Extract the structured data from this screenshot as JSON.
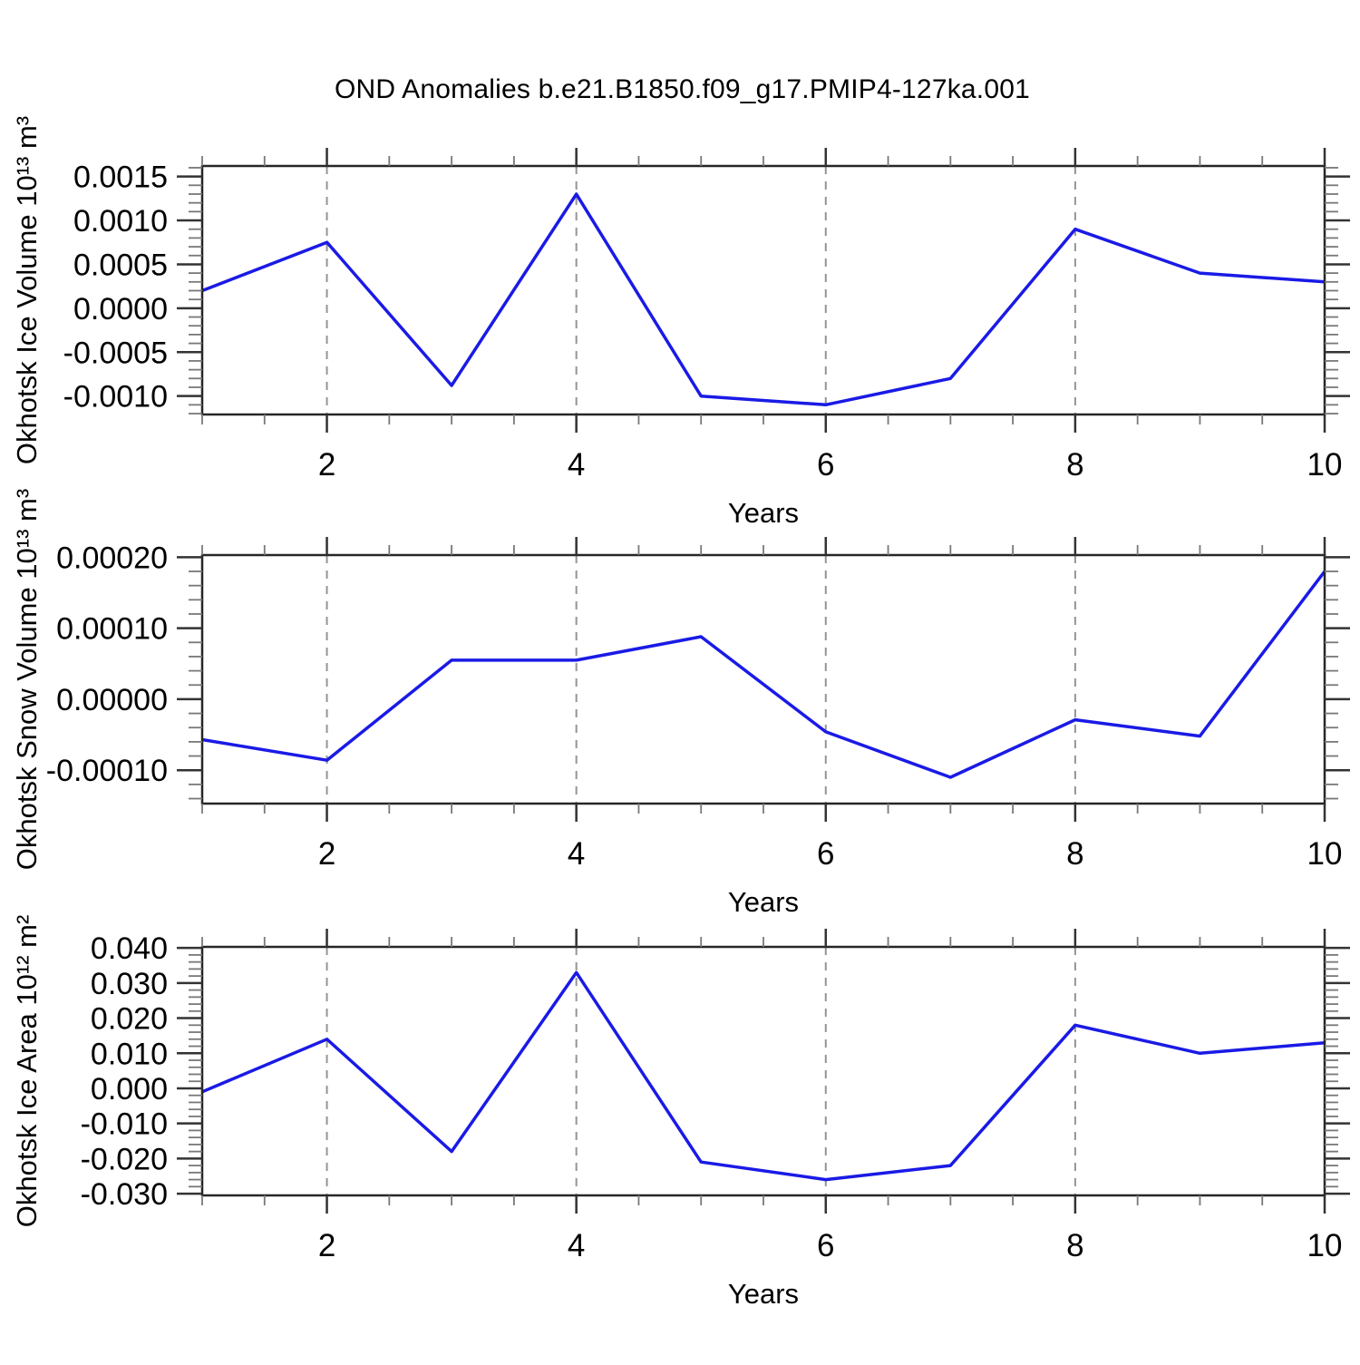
{
  "title": "OND Anomalies b.e21.B1850.f09_g17.PMIP4-127ka.001",
  "colors": {
    "line": "#1a1ae6",
    "axis": "#262626",
    "grid": "#949494",
    "tick_major": "#333333",
    "tick_minor": "#787878",
    "text": "#000000"
  },
  "chart_data": [
    {
      "id": "okhotsk-ice-volume",
      "type": "line",
      "title": "",
      "ylabel": "Okhotsk Ice Volume 10¹³ m³",
      "xlabel": "Years",
      "x": [
        1,
        2,
        3,
        4,
        5,
        6,
        7,
        8,
        9,
        10
      ],
      "values": [
        0.0002,
        0.00075,
        -0.00088,
        0.0013,
        -0.001,
        -0.0011,
        -0.0008,
        0.0009,
        0.0004,
        0.0003
      ],
      "xlim": [
        1,
        10
      ],
      "ylim": [
        -0.00121,
        0.00162
      ],
      "xticks_major": [
        2,
        4,
        6,
        8,
        10
      ],
      "xtick_minor_step": 0.5,
      "ytick_major_step": 0.0005,
      "ytick_minor_step": 0.0001,
      "ytick_decimals": 4,
      "grid_x": [
        2,
        4,
        6,
        8
      ],
      "grid_on": true,
      "legend": "none"
    },
    {
      "id": "okhotsk-snow-volume",
      "type": "line",
      "title": "",
      "ylabel": "Okhotsk Snow Volume 10¹³ m³",
      "xlabel": "Years",
      "x": [
        1,
        2,
        3,
        4,
        5,
        6,
        7,
        8,
        9,
        10
      ],
      "values": [
        -5.7e-05,
        -8.6e-05,
        5.5e-05,
        5.5e-05,
        8.8e-05,
        -4.6e-05,
        -0.00011,
        -2.9e-05,
        -5.2e-05,
        0.00018
      ],
      "xlim": [
        1,
        10
      ],
      "ylim": [
        -0.000147,
        0.000203
      ],
      "xticks_major": [
        2,
        4,
        6,
        8,
        10
      ],
      "xtick_minor_step": 0.5,
      "ytick_major_step": 0.0001,
      "ytick_minor_step": 2e-05,
      "ytick_decimals": 5,
      "grid_x": [
        2,
        4,
        6,
        8
      ],
      "grid_on": true,
      "legend": "none"
    },
    {
      "id": "okhotsk-ice-area",
      "type": "line",
      "title": "",
      "ylabel": "Okhotsk Ice Area 10¹² m²",
      "xlabel": "Years",
      "x": [
        1,
        2,
        3,
        4,
        5,
        6,
        7,
        8,
        9,
        10
      ],
      "values": [
        -0.001,
        0.014,
        -0.018,
        0.033,
        -0.021,
        -0.026,
        -0.022,
        0.018,
        0.01,
        0.013
      ],
      "xlim": [
        1,
        10
      ],
      "ylim": [
        -0.0305,
        0.0403
      ],
      "xticks_major": [
        2,
        4,
        6,
        8,
        10
      ],
      "xtick_minor_step": 0.5,
      "ytick_major_step": 0.01,
      "ytick_minor_step": 0.002,
      "ytick_decimals": 3,
      "grid_x": [
        2,
        4,
        6,
        8
      ],
      "grid_on": true,
      "legend": "none"
    }
  ]
}
